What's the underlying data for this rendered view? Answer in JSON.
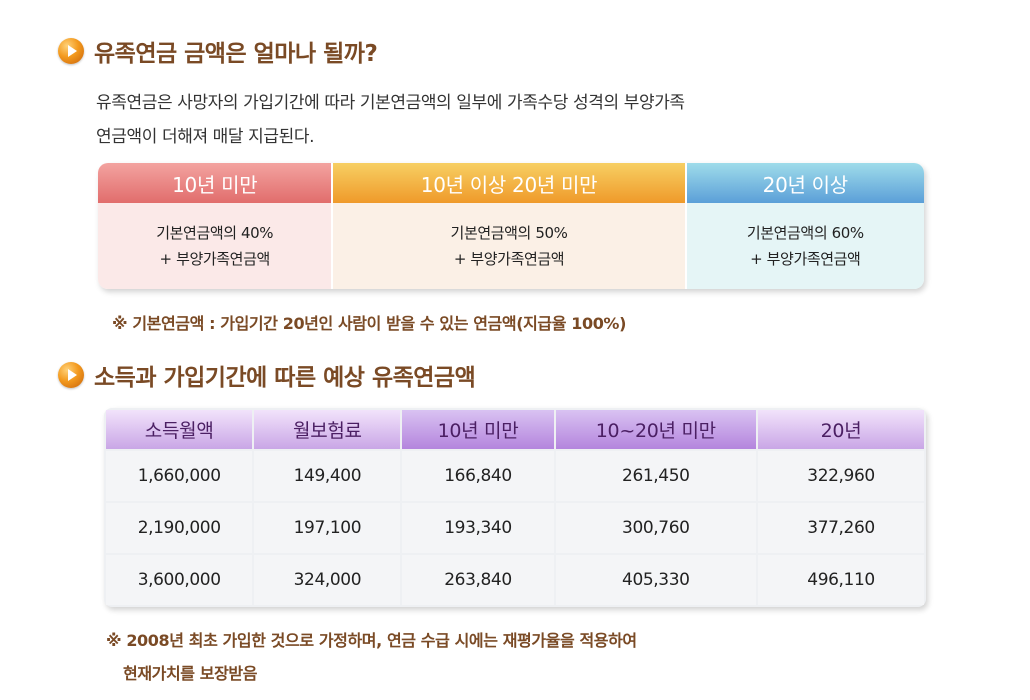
{
  "section1": {
    "title": "유족연금 금액은 얼마나 될까?",
    "desc_line1": "유족연금은 사망자의 가입기간에 따라 기본연금액의 일부에 가족수당 성격의 부양가족",
    "desc_line2": "연금액이 더해져 매달 지급된다."
  },
  "rate_table": {
    "columns": [
      {
        "header": "10년 미만",
        "line1": "기본연금액의 40%",
        "line2": "+ 부양가족연금액"
      },
      {
        "header": "10년 이상 20년 미만",
        "line1": "기본연금액의 50%",
        "line2": "+ 부양가족연금액"
      },
      {
        "header": "20년 이상",
        "line1": "기본연금액의 60%",
        "line2": "+ 부양가족연금액"
      }
    ],
    "note": "※ 기본연금액 : 가입기간 20년인 사람이 받을 수 있는 연금액(지급율 100%)"
  },
  "section2": {
    "title": "소득과 가입기간에 따른 예상 유족연금액"
  },
  "income_table": {
    "headers": [
      "소득월액",
      "월보험료",
      "10년 미만",
      "10~20년 미만",
      "20년"
    ],
    "rows": [
      [
        "1,660,000",
        "149,400",
        "166,840",
        "261,450",
        "322,960"
      ],
      [
        "2,190,000",
        "197,100",
        "193,340",
        "300,760",
        "377,260"
      ],
      [
        "3,600,000",
        "324,000",
        "263,840",
        "405,330",
        "496,110"
      ]
    ],
    "note_line1": "※ 2008년 최초 가입한 것으로 가정하며, 연금 수급 시에는 재평가율을 적용하여",
    "note_line2": "현재가치를 보장받음"
  },
  "icons": {
    "bullet": "play-circle-icon"
  },
  "colors": {
    "title": "#7a4a25",
    "header_purple": "#4b1f63"
  }
}
